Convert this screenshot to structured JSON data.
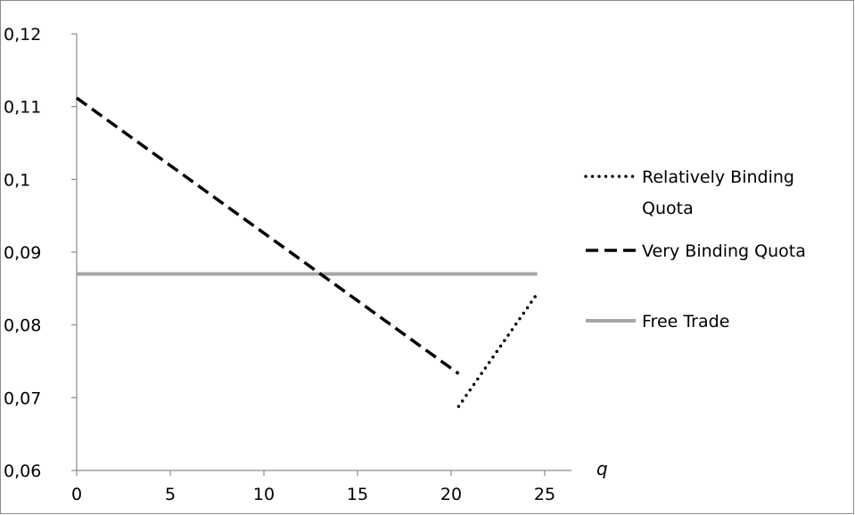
{
  "chart_data": {
    "type": "line",
    "title": "",
    "xlabel": "q",
    "ylabel": "",
    "xlim": [
      0,
      25
    ],
    "ylim": [
      0.06,
      0.12
    ],
    "x_ticks": [
      "0",
      "5",
      "10",
      "15",
      "20",
      "25"
    ],
    "y_ticks": [
      "0,06",
      "0,07",
      "0,08",
      "0,09",
      "0,1",
      "0,11",
      "0,12"
    ],
    "legend_position": "right",
    "series": [
      {
        "name": "Relatively Binding Quota",
        "style": "dotted",
        "color": "#000000",
        "x": [
          20.4,
          24.6
        ],
        "y": [
          0.0688,
          0.0843
        ]
      },
      {
        "name": "Very Binding Quota",
        "style": "dashed",
        "color": "#000000",
        "x": [
          0,
          20.4
        ],
        "y": [
          0.1112,
          0.0733
        ]
      },
      {
        "name": "Free Trade",
        "style": "solid",
        "color": "#a6a6a6",
        "x": [
          0,
          24.6
        ],
        "y": [
          0.087,
          0.087
        ]
      }
    ]
  },
  "legend": {
    "relatively_line1": "Relatively Binding",
    "relatively_line2": "Quota",
    "very": "Very Binding Quota",
    "free": "Free Trade"
  }
}
